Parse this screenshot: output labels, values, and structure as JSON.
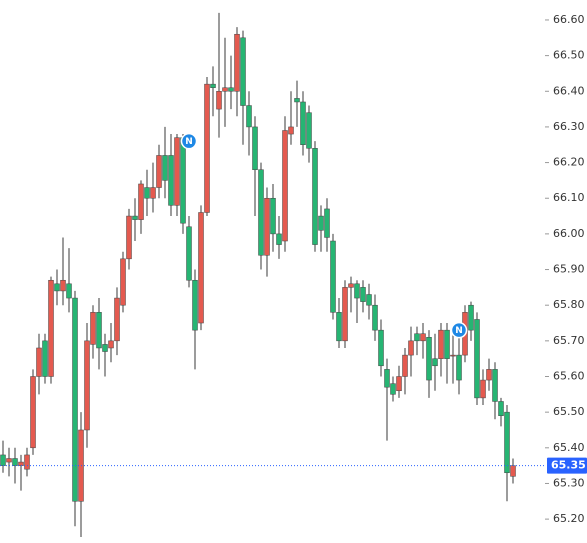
{
  "chart_data": {
    "type": "candlestick",
    "up_color": "#e45a4f",
    "down_color": "#26b573",
    "wick_color": "#3a3a3a",
    "open": [
      65.38,
      65.36,
      65.37,
      65.35,
      65.34,
      65.4,
      65.6,
      65.7,
      65.6,
      65.86,
      65.84,
      65.86,
      65.82,
      65.25,
      65.45,
      65.69,
      65.78,
      65.69,
      65.68,
      65.7,
      65.8,
      65.93,
      66.05,
      66.04,
      66.13,
      66.1,
      66.13,
      66.22,
      66.22,
      66.08,
      66.27,
      66.02,
      65.87,
      65.75,
      66.06,
      66.42,
      66.35,
      66.4,
      66.41,
      66.4,
      66.55,
      66.36,
      66.3,
      66.18,
      65.94,
      66.1,
      66.0,
      65.98,
      66.28,
      66.38,
      66.37,
      66.34,
      66.24,
      66.05,
      66.07,
      65.98,
      65.78,
      65.7,
      65.85,
      65.86,
      65.85,
      65.83,
      65.8,
      65.73,
      65.62,
      65.58,
      65.56,
      65.6,
      65.66,
      65.72,
      65.7,
      65.71,
      65.65,
      65.65,
      65.73,
      65.66,
      65.66,
      65.66,
      65.8,
      65.76,
      65.54,
      65.59,
      65.62,
      65.53,
      65.5,
      65.32
    ],
    "high": [
      65.42,
      65.4,
      65.4,
      65.38,
      65.4,
      65.62,
      65.72,
      65.72,
      65.88,
      65.9,
      65.99,
      65.96,
      65.84,
      65.5,
      65.75,
      65.8,
      65.82,
      65.72,
      65.75,
      65.85,
      65.95,
      66.07,
      66.1,
      66.15,
      66.18,
      66.2,
      66.25,
      66.3,
      66.28,
      66.28,
      66.28,
      66.05,
      65.9,
      66.08,
      66.44,
      66.47,
      66.62,
      66.55,
      66.5,
      66.58,
      66.57,
      66.4,
      66.33,
      66.2,
      66.13,
      66.14,
      66.05,
      66.33,
      66.4,
      66.43,
      66.4,
      66.36,
      66.26,
      66.08,
      66.1,
      66.0,
      65.82,
      65.87,
      65.88,
      65.87,
      65.87,
      65.86,
      65.83,
      65.76,
      65.65,
      65.6,
      65.63,
      65.68,
      65.74,
      65.74,
      65.75,
      65.73,
      65.72,
      65.75,
      65.75,
      65.72,
      65.72,
      65.8,
      65.81,
      65.78,
      65.62,
      65.65,
      65.64,
      65.54,
      65.52,
      65.37
    ],
    "low": [
      65.33,
      65.32,
      65.3,
      65.28,
      65.32,
      65.38,
      65.55,
      65.58,
      65.58,
      65.8,
      65.8,
      65.78,
      65.18,
      65.15,
      65.4,
      65.65,
      65.62,
      65.6,
      65.64,
      65.66,
      65.78,
      65.9,
      65.98,
      66.0,
      66.05,
      66.06,
      66.1,
      66.1,
      66.05,
      66.05,
      66.0,
      65.85,
      65.62,
      65.73,
      66.05,
      66.33,
      66.27,
      66.3,
      66.35,
      66.33,
      66.25,
      66.22,
      66.05,
      65.9,
      65.88,
      65.95,
      65.93,
      65.95,
      66.25,
      66.3,
      66.22,
      66.2,
      65.95,
      65.95,
      65.95,
      65.76,
      65.68,
      65.68,
      65.78,
      65.75,
      65.78,
      65.76,
      65.7,
      65.6,
      65.42,
      65.53,
      65.54,
      65.55,
      65.6,
      65.66,
      65.65,
      65.54,
      65.56,
      65.6,
      65.58,
      65.58,
      65.55,
      65.64,
      65.7,
      65.52,
      65.52,
      65.56,
      65.48,
      65.46,
      65.25,
      65.3
    ],
    "close": [
      65.35,
      65.37,
      65.35,
      65.36,
      65.38,
      65.6,
      65.68,
      65.6,
      65.87,
      65.84,
      65.87,
      65.82,
      65.25,
      65.45,
      65.7,
      65.78,
      65.68,
      65.67,
      65.7,
      65.82,
      65.93,
      66.05,
      66.04,
      66.14,
      66.1,
      66.13,
      66.22,
      66.15,
      66.08,
      66.27,
      66.03,
      65.87,
      65.73,
      66.06,
      66.42,
      66.41,
      66.4,
      66.41,
      66.4,
      66.56,
      66.36,
      66.3,
      66.18,
      65.94,
      66.1,
      66.0,
      65.97,
      66.29,
      66.3,
      66.37,
      66.25,
      66.24,
      65.97,
      66.01,
      65.99,
      65.78,
      65.7,
      65.85,
      65.86,
      65.82,
      65.81,
      65.8,
      65.73,
      65.63,
      65.57,
      65.55,
      65.6,
      65.66,
      65.7,
      65.7,
      65.72,
      65.59,
      65.63,
      65.73,
      65.65,
      65.66,
      65.59,
      65.78,
      65.73,
      65.54,
      65.59,
      65.62,
      65.53,
      65.49,
      65.33,
      65.35
    ],
    "markers": [
      {
        "candle": 31,
        "label": "N",
        "value": 66.26
      },
      {
        "candle": 76,
        "label": "N",
        "value": 65.73
      }
    ],
    "current_price": {
      "value": 65.35,
      "label": "65.35"
    },
    "current_color": "#2962ff",
    "ylim": [
      65.133,
      66.656
    ],
    "yticks": [
      {
        "value": 65.2,
        "label": "65.20"
      },
      {
        "value": 65.3,
        "label": "65.30"
      },
      {
        "value": 65.4,
        "label": "65.40"
      },
      {
        "value": 65.5,
        "label": "65.50"
      },
      {
        "value": 65.6,
        "label": "65.60"
      },
      {
        "value": 65.7,
        "label": "65.70"
      },
      {
        "value": 65.8,
        "label": "65.80"
      },
      {
        "value": 65.9,
        "label": "65.90"
      },
      {
        "value": 66.0,
        "label": "66.00"
      },
      {
        "value": 66.1,
        "label": "66.10"
      },
      {
        "value": 66.2,
        "label": "66.20"
      },
      {
        "value": 66.3,
        "label": "66.30"
      },
      {
        "value": 66.4,
        "label": "66.40"
      },
      {
        "value": 66.5,
        "label": "66.50"
      },
      {
        "value": 66.6,
        "label": "66.60"
      }
    ]
  }
}
